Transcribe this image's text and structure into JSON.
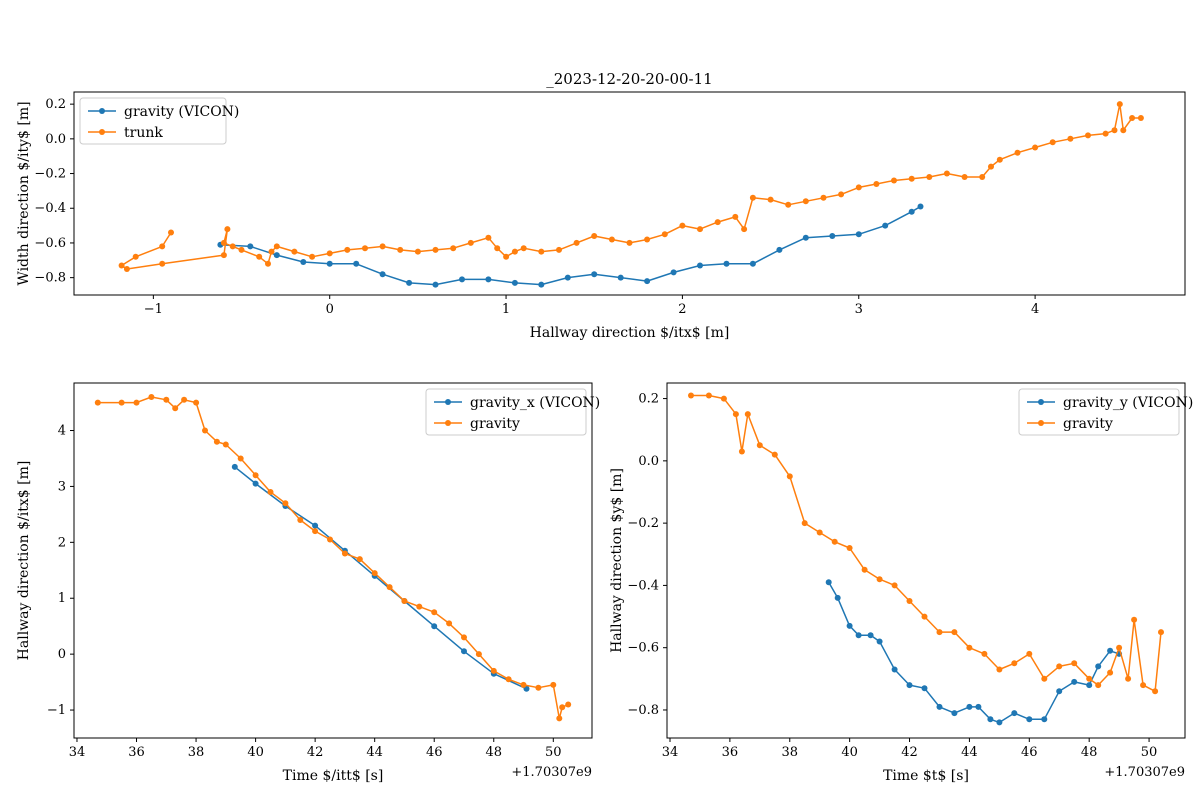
{
  "chart_data": [
    {
      "type": "line",
      "title": "_2023-12-20-20-00-11",
      "xlabel": "Hallway direction $/itx$ [m]",
      "ylabel": "Width direction $/ity$ [m]",
      "xlim": [
        -1.45,
        4.85
      ],
      "ylim": [
        -0.9,
        0.27
      ],
      "xticks": [
        -1,
        0,
        1,
        2,
        3,
        4
      ],
      "xtick_labels": [
        "−1",
        "0",
        "1",
        "2",
        "3",
        "4"
      ],
      "yticks": [
        -0.8,
        -0.6,
        -0.4,
        -0.2,
        0.0,
        0.2
      ],
      "ytick_labels": [
        "−0.8",
        "−0.6",
        "−0.4",
        "−0.2",
        "0.0",
        "0.2"
      ],
      "offset_text": "",
      "legend_position": "upper left",
      "series": [
        {
          "name": "gravity (VICON)",
          "color": "#1f77b4",
          "x": [
            -0.62,
            -0.45,
            -0.3,
            -0.15,
            0.0,
            0.15,
            0.3,
            0.45,
            0.6,
            0.75,
            0.9,
            1.05,
            1.2,
            1.35,
            1.5,
            1.65,
            1.8,
            1.95,
            2.1,
            2.25,
            2.4,
            2.55,
            2.7,
            2.85,
            3.0,
            3.15,
            3.3,
            3.35
          ],
          "y": [
            -0.61,
            -0.62,
            -0.67,
            -0.71,
            -0.72,
            -0.72,
            -0.78,
            -0.83,
            -0.84,
            -0.81,
            -0.81,
            -0.83,
            -0.84,
            -0.8,
            -0.78,
            -0.8,
            -0.82,
            -0.77,
            -0.73,
            -0.72,
            -0.72,
            -0.64,
            -0.57,
            -0.56,
            -0.55,
            -0.5,
            -0.42,
            -0.39
          ]
        },
        {
          "name": "trunk",
          "color": "#ff7f0e",
          "x": [
            -0.9,
            -0.95,
            -1.1,
            -1.18,
            -1.15,
            -0.95,
            -0.6,
            -0.58,
            -0.6,
            -0.55,
            -0.5,
            -0.4,
            -0.35,
            -0.33,
            -0.3,
            -0.2,
            -0.1,
            0.0,
            0.1,
            0.2,
            0.3,
            0.4,
            0.5,
            0.6,
            0.7,
            0.8,
            0.9,
            0.95,
            1.0,
            1.05,
            1.1,
            1.2,
            1.3,
            1.4,
            1.5,
            1.6,
            1.7,
            1.8,
            1.9,
            2.0,
            2.1,
            2.2,
            2.3,
            2.35,
            2.4,
            2.5,
            2.6,
            2.7,
            2.8,
            2.9,
            3.0,
            3.1,
            3.2,
            3.3,
            3.4,
            3.5,
            3.6,
            3.7,
            3.75,
            3.8,
            3.9,
            4.0,
            4.1,
            4.2,
            4.3,
            4.4,
            4.45,
            4.48,
            4.5,
            4.55,
            4.6
          ],
          "y": [
            -0.54,
            -0.62,
            -0.68,
            -0.73,
            -0.75,
            -0.72,
            -0.67,
            -0.52,
            -0.6,
            -0.62,
            -0.64,
            -0.68,
            -0.72,
            -0.65,
            -0.62,
            -0.65,
            -0.68,
            -0.66,
            -0.64,
            -0.63,
            -0.62,
            -0.64,
            -0.65,
            -0.64,
            -0.63,
            -0.6,
            -0.57,
            -0.63,
            -0.68,
            -0.65,
            -0.63,
            -0.65,
            -0.64,
            -0.6,
            -0.56,
            -0.58,
            -0.6,
            -0.58,
            -0.55,
            -0.5,
            -0.52,
            -0.48,
            -0.45,
            -0.52,
            -0.34,
            -0.35,
            -0.38,
            -0.36,
            -0.34,
            -0.32,
            -0.28,
            -0.26,
            -0.24,
            -0.23,
            -0.22,
            -0.2,
            -0.22,
            -0.22,
            -0.16,
            -0.12,
            -0.08,
            -0.05,
            -0.02,
            0.0,
            0.02,
            0.03,
            0.05,
            0.2,
            0.05,
            0.12,
            0.12
          ]
        }
      ]
    },
    {
      "type": "line",
      "title": "",
      "xlabel": "Time $/itt$ [s]",
      "ylabel": "Hallway direction $/itx$ [m]",
      "xlim": [
        33.9,
        51.3
      ],
      "ylim": [
        -1.5,
        4.85
      ],
      "xticks": [
        34,
        36,
        38,
        40,
        42,
        44,
        46,
        48,
        50
      ],
      "xtick_labels": [
        "34",
        "36",
        "38",
        "40",
        "42",
        "44",
        "46",
        "48",
        "50"
      ],
      "yticks": [
        -1,
        0,
        1,
        2,
        3,
        4
      ],
      "ytick_labels": [
        "−1",
        "0",
        "1",
        "2",
        "3",
        "4"
      ],
      "offset_text": "+1.70307e9",
      "legend_position": "upper right",
      "series": [
        {
          "name": "gravity_x (VICON)",
          "color": "#1f77b4",
          "x": [
            39.3,
            40.0,
            41.0,
            42.0,
            43.0,
            44.0,
            45.0,
            46.0,
            47.0,
            48.0,
            49.1
          ],
          "y": [
            3.35,
            3.05,
            2.65,
            2.3,
            1.85,
            1.4,
            0.95,
            0.5,
            0.05,
            -0.35,
            -0.62
          ]
        },
        {
          "name": "gravity",
          "color": "#ff7f0e",
          "x": [
            34.7,
            35.5,
            36.0,
            36.5,
            37.0,
            37.3,
            37.6,
            38.0,
            38.3,
            38.7,
            39.0,
            39.5,
            40.0,
            40.5,
            41.0,
            41.5,
            42.0,
            42.5,
            43.0,
            43.5,
            44.0,
            44.5,
            45.0,
            45.5,
            46.0,
            46.5,
            47.0,
            47.5,
            48.0,
            48.5,
            49.0,
            49.5,
            50.0,
            50.2,
            50.3,
            50.5
          ],
          "y": [
            4.5,
            4.5,
            4.5,
            4.6,
            4.55,
            4.4,
            4.55,
            4.5,
            4.0,
            3.8,
            3.75,
            3.5,
            3.2,
            2.9,
            2.7,
            2.4,
            2.2,
            2.05,
            1.8,
            1.7,
            1.45,
            1.2,
            0.95,
            0.85,
            0.75,
            0.55,
            0.3,
            0.0,
            -0.3,
            -0.45,
            -0.55,
            -0.6,
            -0.55,
            -1.15,
            -0.95,
            -0.9
          ]
        }
      ]
    },
    {
      "type": "line",
      "title": "",
      "xlabel": "Time $t$ [s]",
      "ylabel": "Hallway direction $y$ [m]",
      "xlim": [
        33.9,
        51.2
      ],
      "ylim": [
        -0.89,
        0.25
      ],
      "xticks": [
        34,
        36,
        38,
        40,
        42,
        44,
        46,
        48,
        50
      ],
      "xtick_labels": [
        "34",
        "36",
        "38",
        "40",
        "42",
        "44",
        "46",
        "48",
        "50"
      ],
      "yticks": [
        -0.8,
        -0.6,
        -0.4,
        -0.2,
        0.0,
        0.2
      ],
      "ytick_labels": [
        "−0.8",
        "−0.6",
        "−0.4",
        "−0.2",
        "0.0",
        "0.2"
      ],
      "offset_text": "+1.70307e9",
      "legend_position": "upper right",
      "series": [
        {
          "name": "gravity_y (VICON)",
          "color": "#1f77b4",
          "x": [
            39.3,
            39.6,
            40.0,
            40.3,
            40.7,
            41.0,
            41.5,
            42.0,
            42.5,
            43.0,
            43.5,
            44.0,
            44.3,
            44.7,
            45.0,
            45.5,
            46.0,
            46.5,
            47.0,
            47.5,
            48.0,
            48.3,
            48.7,
            49.0
          ],
          "y": [
            -0.39,
            -0.44,
            -0.53,
            -0.56,
            -0.56,
            -0.58,
            -0.67,
            -0.72,
            -0.73,
            -0.79,
            -0.81,
            -0.79,
            -0.79,
            -0.83,
            -0.84,
            -0.81,
            -0.83,
            -0.83,
            -0.74,
            -0.71,
            -0.72,
            -0.66,
            -0.61,
            -0.62
          ]
        },
        {
          "name": "gravity",
          "color": "#ff7f0e",
          "x": [
            34.7,
            35.3,
            35.8,
            36.2,
            36.4,
            36.6,
            37.0,
            37.5,
            38.0,
            38.5,
            39.0,
            39.5,
            40.0,
            40.5,
            41.0,
            41.5,
            42.0,
            42.5,
            43.0,
            43.5,
            44.0,
            44.5,
            45.0,
            45.5,
            46.0,
            46.5,
            47.0,
            47.5,
            48.0,
            48.3,
            48.7,
            49.0,
            49.3,
            49.5,
            49.8,
            50.2,
            50.4
          ],
          "y": [
            0.21,
            0.21,
            0.2,
            0.15,
            0.03,
            0.15,
            0.05,
            0.02,
            -0.05,
            -0.2,
            -0.23,
            -0.26,
            -0.28,
            -0.35,
            -0.38,
            -0.4,
            -0.45,
            -0.5,
            -0.55,
            -0.55,
            -0.6,
            -0.62,
            -0.67,
            -0.65,
            -0.62,
            -0.7,
            -0.66,
            -0.65,
            -0.7,
            -0.72,
            -0.68,
            -0.6,
            -0.7,
            -0.51,
            -0.72,
            -0.74,
            -0.55
          ]
        }
      ]
    }
  ]
}
